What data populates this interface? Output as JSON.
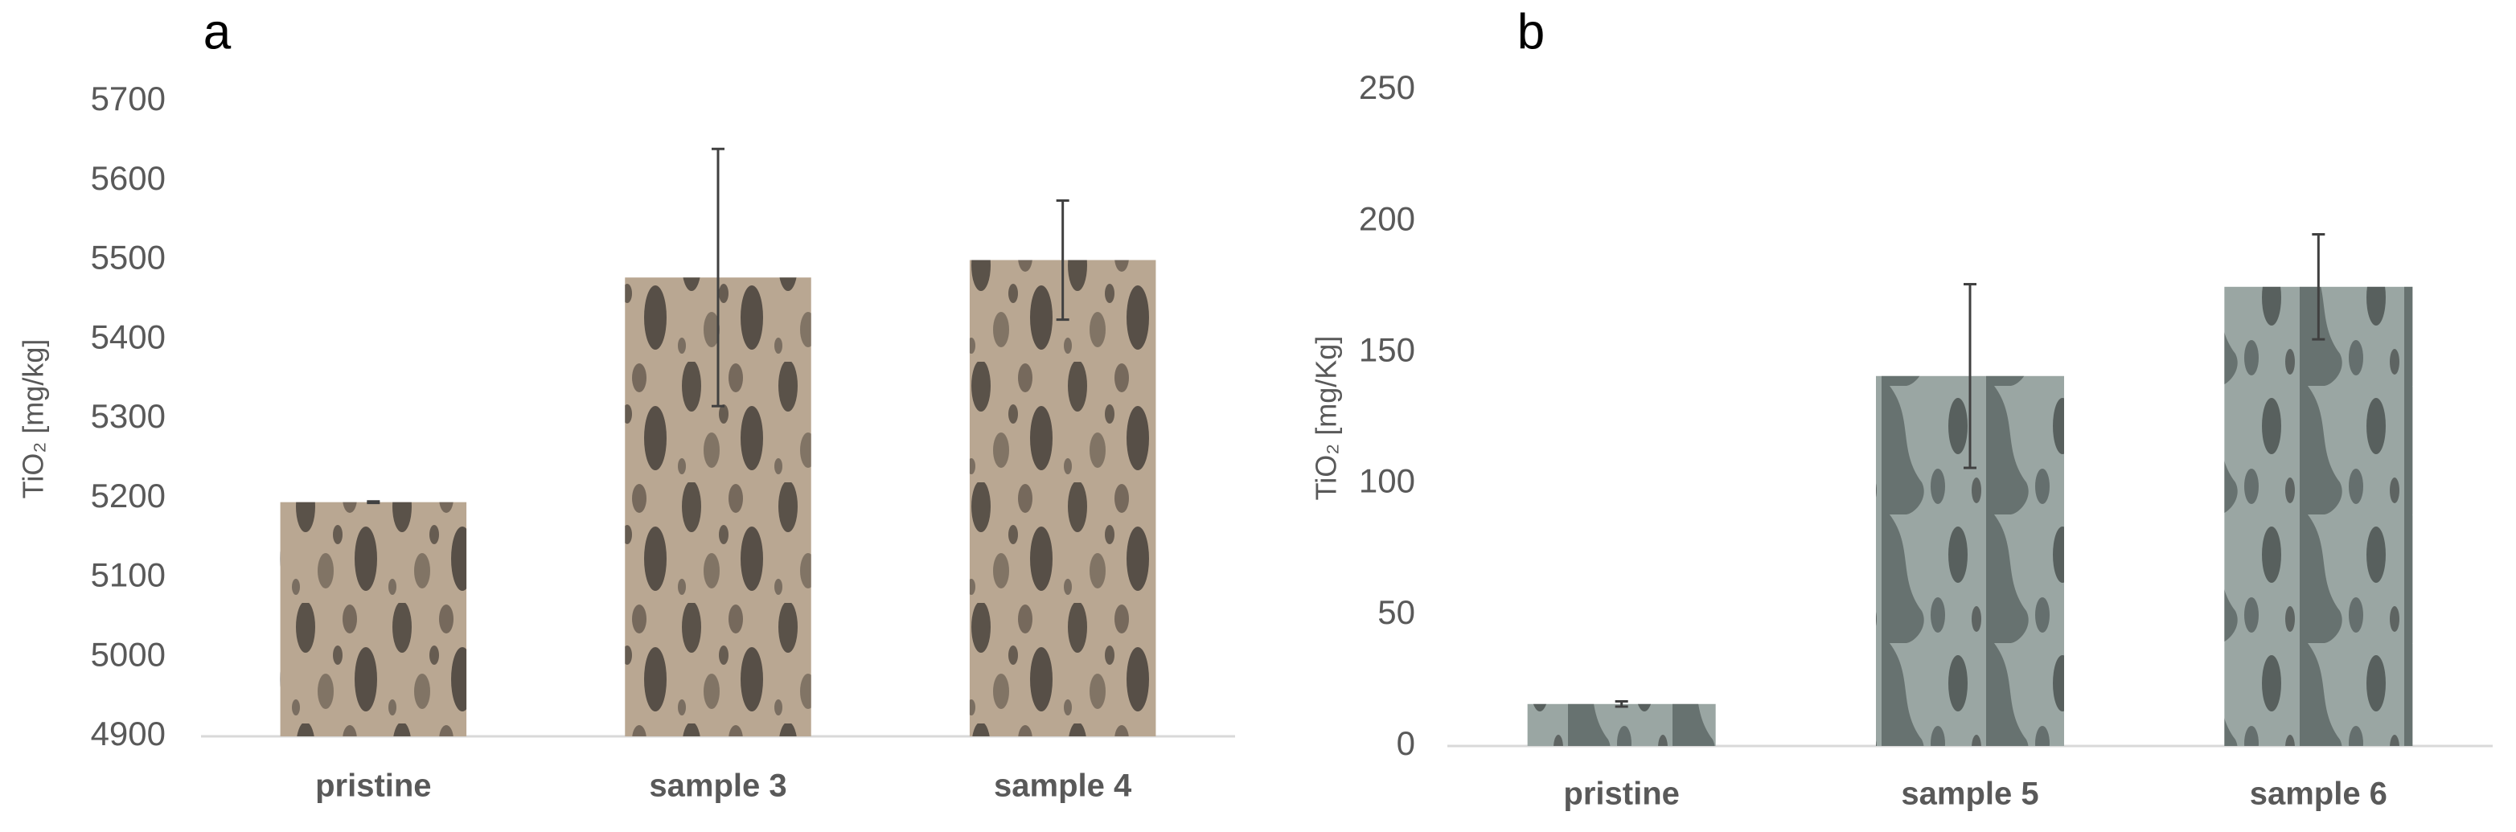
{
  "chart_data": [
    {
      "type": "bar",
      "panel_label": "a",
      "y_label": "TiO₂ [mg/kg]",
      "categories": [
        "pristine",
        "sample 3",
        "sample 4"
      ],
      "values": [
        5195,
        5478,
        5500
      ],
      "errors": [
        1,
        162,
        75
      ],
      "color": "#b9a792",
      "ylim": [
        4900,
        5700
      ],
      "yticks": [
        4900,
        5000,
        5100,
        5200,
        5300,
        5400,
        5500,
        5600,
        5700
      ]
    },
    {
      "type": "bar",
      "panel_label": "b",
      "y_label": "TiO₂ [mg/Kg]",
      "categories": [
        "pristine",
        "sample 5",
        "sample 6"
      ],
      "values": [
        16,
        141,
        175
      ],
      "errors": [
        1,
        35,
        20
      ],
      "color": "#9aa6a3",
      "ylim": [
        0,
        250
      ],
      "yticks": [
        0,
        50,
        100,
        150,
        200,
        250
      ]
    }
  ]
}
